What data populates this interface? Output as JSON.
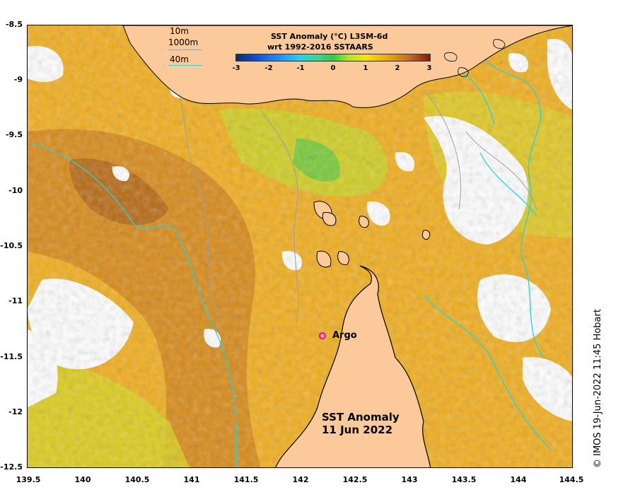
{
  "map": {
    "lat_ticks": [
      "-8.5",
      "-9",
      "-9.5",
      "-10",
      "-10.5",
      "-11",
      "-11.5",
      "-12",
      "-12.5"
    ],
    "lon_ticks": [
      "139.5",
      "140",
      "140.5",
      "141",
      "141.5",
      "142",
      "142.5",
      "143",
      "143.5",
      "144",
      "144.5"
    ],
    "lat_range": [
      -12.5,
      -8.5
    ],
    "lon_range": [
      139.5,
      144.5
    ],
    "land_color": "#fcc99b",
    "isobath_color_40m": "#22d3e0",
    "isobath_color_1000m": "#9aa0a6",
    "coast_color": "#000000"
  },
  "colorbar": {
    "title_line1": "SST Anomaly (°C) L3SM-6d",
    "title_line2": "wrt 1992-2016 SSTAARS",
    "ticks": [
      "-3",
      "-2",
      "-1",
      "0",
      "1",
      "2",
      "3"
    ],
    "range": [
      -3,
      3
    ]
  },
  "depth_legend": {
    "label_10m": "10m",
    "label_1000m": "1000m",
    "label_40m": "40m"
  },
  "argo": {
    "label": "Argo",
    "marker_color": "#e000e0"
  },
  "product": {
    "line1": "SST Anomaly",
    "line2": "11 Jun 2022"
  },
  "copyright": "© IMOS 19-Jun-2022 11:45 Hobart"
}
